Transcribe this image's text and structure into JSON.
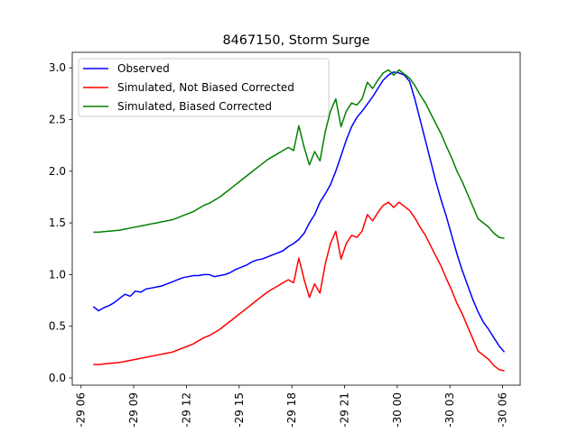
{
  "chart_data": {
    "type": "line",
    "title": "8467150, Storm Surge",
    "xlabel": "",
    "ylabel": "",
    "x_unit": "hours",
    "xlim": [
      5.5,
      31.0
    ],
    "ylim": [
      -0.07,
      3.15
    ],
    "y_ticks": [
      0.0,
      0.5,
      1.0,
      1.5,
      2.0,
      2.5,
      3.0
    ],
    "y_tick_labels": [
      "0.0",
      "0.5",
      "1.0",
      "1.5",
      "2.0",
      "2.5",
      "3.0"
    ],
    "x_ticks": [
      6,
      9,
      12,
      15,
      18,
      21,
      24,
      27,
      30
    ],
    "x_tick_labels": [
      "-29 06",
      "-29 09",
      "-29 12",
      "-29 15",
      "-29 18",
      "-29 21",
      "-30 00",
      "-30 03",
      "-30 06"
    ],
    "grid": false,
    "legend_position": "top-left",
    "series": [
      {
        "name": "Observed",
        "color": "#0000ff",
        "x": [
          6.7,
          7.0,
          7.3,
          7.6,
          7.9,
          8.2,
          8.5,
          8.8,
          9.1,
          9.4,
          9.7,
          10.0,
          10.3,
          10.6,
          10.9,
          11.2,
          11.5,
          11.8,
          12.1,
          12.4,
          12.7,
          13.0,
          13.3,
          13.6,
          13.9,
          14.2,
          14.5,
          14.8,
          15.1,
          15.4,
          15.7,
          16.0,
          16.3,
          16.6,
          16.9,
          17.2,
          17.5,
          17.8,
          18.1,
          18.4,
          18.7,
          19.0,
          19.3,
          19.6,
          19.9,
          20.2,
          20.5,
          20.8,
          21.1,
          21.4,
          21.7,
          22.0,
          22.3,
          22.6,
          22.9,
          23.2,
          23.5,
          23.8,
          24.1,
          24.4,
          24.7,
          25.0,
          25.3,
          25.6,
          25.9,
          26.2,
          26.5,
          26.8,
          27.1,
          27.4,
          27.7,
          28.0,
          28.3,
          28.6,
          28.9,
          29.2,
          29.5,
          29.8,
          30.1
        ],
        "values": [
          0.69,
          0.65,
          0.68,
          0.7,
          0.73,
          0.77,
          0.81,
          0.79,
          0.84,
          0.83,
          0.86,
          0.87,
          0.88,
          0.89,
          0.91,
          0.93,
          0.95,
          0.97,
          0.98,
          0.99,
          0.99,
          1.0,
          1.0,
          0.98,
          0.99,
          1.0,
          1.02,
          1.05,
          1.07,
          1.09,
          1.12,
          1.14,
          1.15,
          1.17,
          1.19,
          1.21,
          1.23,
          1.27,
          1.3,
          1.34,
          1.4,
          1.5,
          1.58,
          1.7,
          1.78,
          1.87,
          2.0,
          2.15,
          2.3,
          2.43,
          2.52,
          2.58,
          2.65,
          2.72,
          2.8,
          2.88,
          2.93,
          2.96,
          2.95,
          2.93,
          2.87,
          2.7,
          2.5,
          2.3,
          2.1,
          1.9,
          1.72,
          1.56,
          1.38,
          1.2,
          1.04,
          0.9,
          0.76,
          0.64,
          0.54,
          0.47,
          0.39,
          0.31,
          0.25
        ]
      },
      {
        "name": "Simulated, Not Biased Corrected",
        "color": "#ff0000",
        "x": [
          6.7,
          7.0,
          7.3,
          7.6,
          7.9,
          8.2,
          8.5,
          8.8,
          9.1,
          9.4,
          9.7,
          10.0,
          10.3,
          10.6,
          10.9,
          11.2,
          11.5,
          11.8,
          12.1,
          12.4,
          12.7,
          13.0,
          13.3,
          13.6,
          13.9,
          14.2,
          14.5,
          14.8,
          15.1,
          15.4,
          15.7,
          16.0,
          16.3,
          16.6,
          16.9,
          17.2,
          17.5,
          17.8,
          18.1,
          18.4,
          18.7,
          19.0,
          19.3,
          19.6,
          19.9,
          20.2,
          20.5,
          20.8,
          21.1,
          21.4,
          21.7,
          22.0,
          22.3,
          22.6,
          22.9,
          23.2,
          23.5,
          23.8,
          24.1,
          24.4,
          24.7,
          25.0,
          25.3,
          25.6,
          25.9,
          26.2,
          26.5,
          26.8,
          27.1,
          27.4,
          27.7,
          28.0,
          28.3,
          28.6,
          28.9,
          29.2,
          29.5,
          29.8,
          30.1
        ],
        "values": [
          0.13,
          0.13,
          0.135,
          0.14,
          0.145,
          0.15,
          0.16,
          0.17,
          0.18,
          0.19,
          0.2,
          0.21,
          0.22,
          0.23,
          0.24,
          0.25,
          0.27,
          0.29,
          0.31,
          0.33,
          0.36,
          0.39,
          0.41,
          0.44,
          0.47,
          0.51,
          0.55,
          0.59,
          0.63,
          0.67,
          0.71,
          0.75,
          0.79,
          0.83,
          0.86,
          0.89,
          0.92,
          0.95,
          0.92,
          1.16,
          0.95,
          0.78,
          0.91,
          0.82,
          1.1,
          1.3,
          1.42,
          1.15,
          1.3,
          1.38,
          1.36,
          1.42,
          1.58,
          1.52,
          1.6,
          1.67,
          1.7,
          1.65,
          1.7,
          1.66,
          1.62,
          1.55,
          1.46,
          1.38,
          1.28,
          1.18,
          1.08,
          0.96,
          0.85,
          0.72,
          0.62,
          0.5,
          0.38,
          0.26,
          0.22,
          0.18,
          0.12,
          0.08,
          0.07
        ]
      },
      {
        "name": "Simulated, Biased Corrected",
        "color": "#008000",
        "x": [
          6.7,
          7.0,
          7.3,
          7.6,
          7.9,
          8.2,
          8.5,
          8.8,
          9.1,
          9.4,
          9.7,
          10.0,
          10.3,
          10.6,
          10.9,
          11.2,
          11.5,
          11.8,
          12.1,
          12.4,
          12.7,
          13.0,
          13.3,
          13.6,
          13.9,
          14.2,
          14.5,
          14.8,
          15.1,
          15.4,
          15.7,
          16.0,
          16.3,
          16.6,
          16.9,
          17.2,
          17.5,
          17.8,
          18.1,
          18.4,
          18.7,
          19.0,
          19.3,
          19.6,
          19.9,
          20.2,
          20.5,
          20.8,
          21.1,
          21.4,
          21.7,
          22.0,
          22.3,
          22.6,
          22.9,
          23.2,
          23.5,
          23.8,
          24.1,
          24.4,
          24.7,
          25.0,
          25.3,
          25.6,
          25.9,
          26.2,
          26.5,
          26.8,
          27.1,
          27.4,
          27.7,
          28.0,
          28.3,
          28.6,
          28.9,
          29.2,
          29.5,
          29.8,
          30.1
        ],
        "values": [
          1.41,
          1.41,
          1.415,
          1.42,
          1.425,
          1.43,
          1.44,
          1.45,
          1.46,
          1.47,
          1.48,
          1.49,
          1.5,
          1.51,
          1.52,
          1.53,
          1.55,
          1.57,
          1.59,
          1.61,
          1.64,
          1.67,
          1.69,
          1.72,
          1.75,
          1.79,
          1.83,
          1.87,
          1.91,
          1.95,
          1.99,
          2.03,
          2.07,
          2.11,
          2.14,
          2.17,
          2.2,
          2.23,
          2.2,
          2.44,
          2.23,
          2.06,
          2.19,
          2.1,
          2.38,
          2.58,
          2.7,
          2.43,
          2.58,
          2.66,
          2.64,
          2.7,
          2.86,
          2.8,
          2.88,
          2.95,
          2.98,
          2.93,
          2.98,
          2.94,
          2.9,
          2.83,
          2.74,
          2.66,
          2.56,
          2.46,
          2.36,
          2.24,
          2.13,
          2.0,
          1.9,
          1.78,
          1.66,
          1.54,
          1.5,
          1.46,
          1.4,
          1.36,
          1.35
        ]
      }
    ]
  }
}
